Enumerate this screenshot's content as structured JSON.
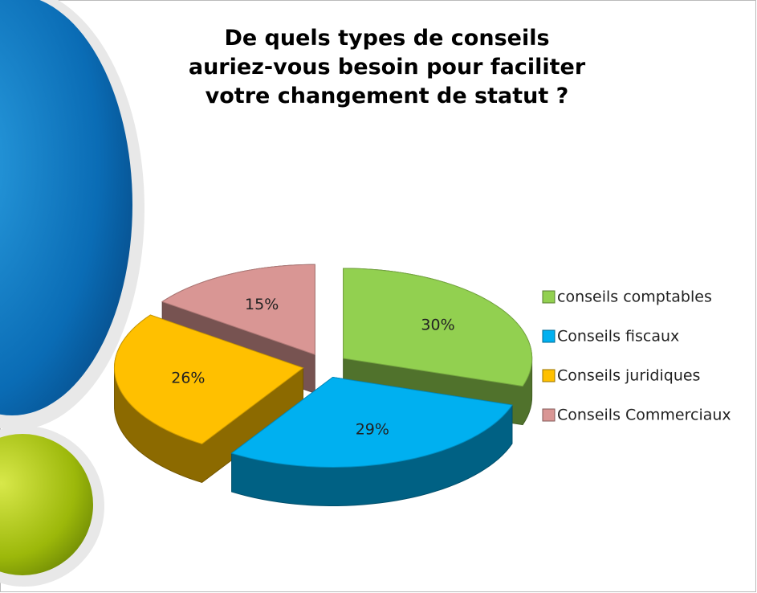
{
  "chart_data": {
    "type": "pie",
    "title": [
      "De quels types de conseils",
      "auriez-vous besoin pour faciliter",
      "votre changement de statut ?"
    ],
    "categories": [
      "conseils comptables",
      "Conseils fiscaux",
      "Conseils juridiques",
      "Conseils Commerciaux"
    ],
    "values": [
      30,
      29,
      26,
      15
    ],
    "value_labels": [
      "30%",
      "29%",
      "26%",
      "15%"
    ],
    "colors": [
      "#92d050",
      "#00b0f0",
      "#ffc000",
      "#d99694"
    ],
    "legend": "right"
  }
}
